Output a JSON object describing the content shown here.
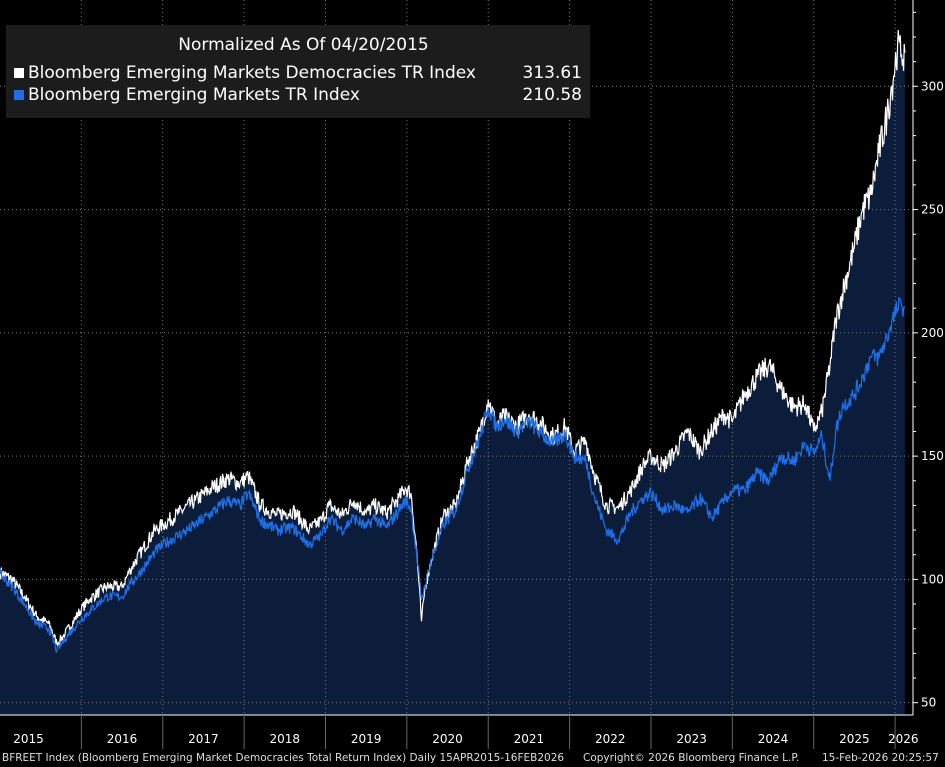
{
  "legend": {
    "title": "Normalized As Of 04/20/2015",
    "series": [
      {
        "name": "Bloomberg Emerging Markets Democracies TR Index",
        "value": "313.61",
        "color": "#ffffff"
      },
      {
        "name": "Bloomberg Emerging Markets TR Index",
        "value": "210.58",
        "color": "#1e6fe8"
      }
    ]
  },
  "footer": {
    "description": "BFREET Index (Bloomberg Emerging Market Democracies Total Return Index) Daily 15APR2015-16FEB2026",
    "copyright": "Copyright© 2026 Bloomberg Finance L.P.",
    "timestamp": "15-Feb-2026 20:25:57"
  },
  "colors": {
    "background": "#000000",
    "area_fill": "#0b1d3a",
    "series1": "#ffffff",
    "series2": "#1e6fe8",
    "grid": "#7a7a7a"
  },
  "chart_data": {
    "type": "line",
    "title": "Normalized As Of 04/20/2015",
    "xlabel": "",
    "ylabel": "",
    "grid": true,
    "legend_position": "top-left",
    "xlim": [
      2015.0,
      2026.22
    ],
    "ylim": [
      45,
      335
    ],
    "yticks": [
      50,
      100,
      150,
      200,
      250,
      300
    ],
    "x_tick_labels": [
      "2015",
      "2016",
      "2017",
      "2018",
      "2019",
      "2020",
      "2021",
      "2022",
      "2023",
      "2024",
      "2025",
      "2026"
    ],
    "x_tick_label_positions": [
      2015.35,
      2016.5,
      2017.5,
      2018.5,
      2019.5,
      2020.5,
      2021.5,
      2022.5,
      2023.5,
      2024.5,
      2025.5,
      2026.1
    ],
    "x_gridlines": [
      2016.0,
      2017.0,
      2018.0,
      2019.0,
      2020.0,
      2021.0,
      2022.0,
      2023.0,
      2024.0,
      2025.0,
      2026.0
    ],
    "series": [
      {
        "name": "Bloomberg Emerging Markets Democracies TR Index",
        "last_value": 313.61,
        "x": [
          2015.0,
          2015.15,
          2015.3,
          2015.45,
          2015.6,
          2015.7,
          2015.8,
          2016.0,
          2016.1,
          2016.3,
          2016.5,
          2016.6,
          2016.75,
          2016.9,
          2017.0,
          2017.2,
          2017.4,
          2017.6,
          2017.8,
          2017.95,
          2018.05,
          2018.2,
          2018.4,
          2018.6,
          2018.8,
          2018.95,
          2019.05,
          2019.2,
          2019.35,
          2019.5,
          2019.6,
          2019.75,
          2019.9,
          2019.98,
          2020.05,
          2020.12,
          2020.18,
          2020.22,
          2020.3,
          2020.45,
          2020.6,
          2020.75,
          2020.9,
          2021.0,
          2021.1,
          2021.2,
          2021.35,
          2021.5,
          2021.65,
          2021.8,
          2021.95,
          2022.05,
          2022.2,
          2022.3,
          2022.45,
          2022.6,
          2022.75,
          2022.9,
          2023.0,
          2023.15,
          2023.3,
          2023.45,
          2023.6,
          2023.75,
          2023.9,
          2024.0,
          2024.15,
          2024.3,
          2024.45,
          2024.6,
          2024.75,
          2024.9,
          2025.0,
          2025.1,
          2025.2,
          2025.27,
          2025.35,
          2025.5,
          2025.6,
          2025.7,
          2025.8,
          2025.9,
          2025.96,
          2026.03,
          2026.08,
          2026.12
        ],
        "values": [
          103,
          100,
          93,
          85,
          82,
          74,
          78,
          88,
          92,
          97,
          97,
          104,
          112,
          120,
          122,
          127,
          132,
          137,
          141,
          139,
          142,
          130,
          126,
          128,
          120,
          124,
          130,
          126,
          132,
          127,
          130,
          127,
          133,
          137,
          135,
          112,
          83,
          96,
          108,
          126,
          130,
          148,
          160,
          173,
          163,
          166,
          162,
          167,
          163,
          158,
          162,
          152,
          156,
          143,
          130,
          129,
          136,
          146,
          150,
          146,
          152,
          160,
          152,
          160,
          167,
          164,
          175,
          182,
          187,
          177,
          170,
          171,
          160,
          168,
          187,
          205,
          216,
          235,
          250,
          256,
          273,
          288,
          300,
          316,
          313,
          313.61
        ]
      },
      {
        "name": "Bloomberg Emerging Markets TR Index",
        "last_value": 210.58,
        "x": [
          2015.0,
          2015.15,
          2015.3,
          2015.45,
          2015.6,
          2015.7,
          2015.8,
          2016.0,
          2016.1,
          2016.3,
          2016.5,
          2016.6,
          2016.75,
          2016.9,
          2017.0,
          2017.2,
          2017.4,
          2017.6,
          2017.8,
          2017.95,
          2018.05,
          2018.2,
          2018.4,
          2018.6,
          2018.8,
          2018.95,
          2019.05,
          2019.2,
          2019.35,
          2019.5,
          2019.6,
          2019.75,
          2019.9,
          2019.98,
          2020.05,
          2020.12,
          2020.18,
          2020.22,
          2020.3,
          2020.45,
          2020.6,
          2020.75,
          2020.9,
          2021.0,
          2021.1,
          2021.2,
          2021.35,
          2021.5,
          2021.65,
          2021.8,
          2021.95,
          2022.05,
          2022.2,
          2022.3,
          2022.45,
          2022.6,
          2022.75,
          2022.9,
          2023.0,
          2023.15,
          2023.3,
          2023.45,
          2023.6,
          2023.75,
          2023.9,
          2024.0,
          2024.15,
          2024.3,
          2024.45,
          2024.6,
          2024.75,
          2024.9,
          2025.0,
          2025.1,
          2025.2,
          2025.27,
          2025.35,
          2025.5,
          2025.6,
          2025.7,
          2025.8,
          2025.9,
          2025.96,
          2026.03,
          2026.08,
          2026.12
        ],
        "values": [
          102,
          97,
          90,
          82,
          80,
          71,
          76,
          84,
          87,
          93,
          93,
          98,
          104,
          111,
          114,
          118,
          122,
          127,
          132,
          130,
          135,
          124,
          120,
          121,
          114,
          118,
          125,
          120,
          125,
          121,
          125,
          121,
          128,
          132,
          129,
          110,
          92,
          97,
          108,
          122,
          128,
          145,
          158,
          170,
          162,
          165,
          160,
          164,
          159,
          155,
          159,
          150,
          148,
          134,
          120,
          116,
          127,
          133,
          135,
          128,
          130,
          127,
          133,
          125,
          132,
          136,
          136,
          143,
          140,
          150,
          148,
          155,
          151,
          158,
          140,
          160,
          170,
          175,
          182,
          190,
          190,
          198,
          205,
          210,
          211,
          210.58
        ]
      }
    ]
  }
}
